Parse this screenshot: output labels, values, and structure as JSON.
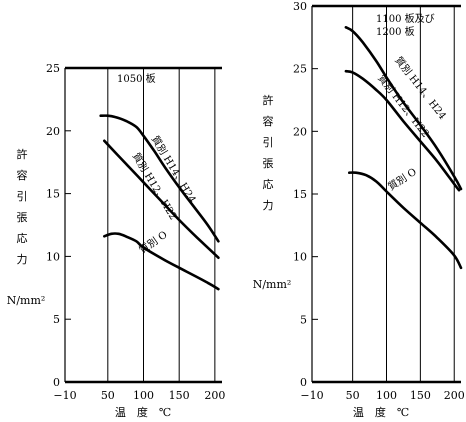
{
  "chart_data": [
    {
      "type": "line",
      "title": "",
      "annotation": "1050 板",
      "xlabel": "温　度　℃",
      "ylabel": [
        "許",
        "容",
        "引",
        "張",
        "応",
        "力",
        "N/mm²"
      ],
      "xlim": [
        -10,
        210
      ],
      "ylim": [
        0,
        25
      ],
      "xticks": [
        -10,
        50,
        100,
        150,
        200
      ],
      "xtick_labels": [
        "−10",
        "50",
        "100",
        "150",
        "200"
      ],
      "yticks": [
        0,
        5,
        10,
        15,
        20,
        25
      ],
      "grid": "vertical",
      "series": [
        {
          "name": "質別 H14、H24",
          "x": [
            40,
            50,
            60,
            75,
            90,
            100,
            115,
            130,
            150,
            170,
            190,
            205
          ],
          "y": [
            21.2,
            21.2,
            21.1,
            20.8,
            20.3,
            19.6,
            18.4,
            17.1,
            15.5,
            14.0,
            12.5,
            11.2
          ]
        },
        {
          "name": "質別 H12、H22",
          "x": [
            45,
            75,
            100,
            125,
            150,
            175,
            205
          ],
          "y": [
            19.2,
            17.4,
            15.9,
            14.4,
            12.9,
            11.5,
            9.9
          ]
        },
        {
          "name": "質別 O",
          "x": [
            45,
            55,
            65,
            75,
            90,
            100,
            130,
            160,
            190,
            205
          ],
          "y": [
            11.6,
            11.8,
            11.8,
            11.6,
            11.2,
            10.7,
            9.7,
            8.8,
            7.9,
            7.4
          ]
        }
      ]
    },
    {
      "type": "line",
      "title": "",
      "annotation": [
        "1100 板及び",
        "1200 板"
      ],
      "xlabel": "温　度　℃",
      "ylabel": [
        "許",
        "容",
        "引",
        "張",
        "応",
        "力",
        "N/mm²"
      ],
      "xlim": [
        -10,
        210
      ],
      "ylim": [
        0,
        30
      ],
      "xticks": [
        -10,
        50,
        100,
        150,
        200
      ],
      "xtick_labels": [
        "−10",
        "50",
        "100",
        "150",
        "200"
      ],
      "yticks": [
        0,
        5,
        10,
        15,
        20,
        25,
        30
      ],
      "grid": "vertical",
      "series": [
        {
          "name": "質別 H14、H24",
          "x": [
            40,
            50,
            65,
            85,
            100,
            125,
            150,
            175,
            200,
            210
          ],
          "y": [
            28.3,
            28.0,
            27.1,
            25.6,
            24.3,
            22.3,
            20.5,
            18.6,
            16.4,
            15.4
          ]
        },
        {
          "name": "質別 H12、H22",
          "x": [
            40,
            50,
            65,
            85,
            100,
            125,
            150,
            175,
            200,
            207
          ],
          "y": [
            24.8,
            24.7,
            24.2,
            23.3,
            22.5,
            20.8,
            19.2,
            17.6,
            15.8,
            15.3
          ]
        },
        {
          "name": "質別 O",
          "x": [
            45,
            55,
            70,
            85,
            100,
            125,
            150,
            175,
            200,
            210
          ],
          "y": [
            16.7,
            16.7,
            16.5,
            16.0,
            15.2,
            13.9,
            12.7,
            11.5,
            10.1,
            9.1
          ]
        }
      ]
    }
  ]
}
